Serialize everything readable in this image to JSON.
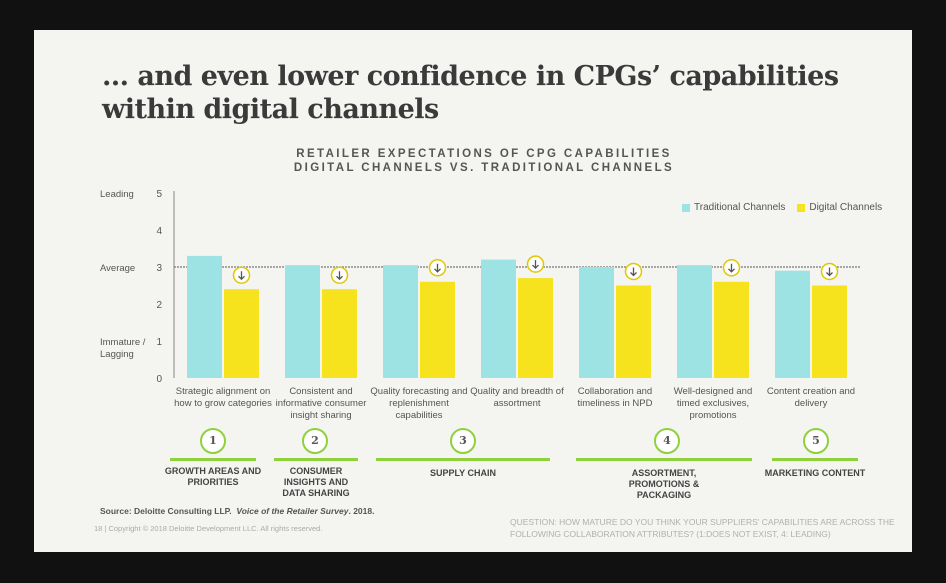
{
  "title": "… and even lower confidence in CPGs’ capabilities within digital channels",
  "subtitle_line1": "RETAILER EXPECTATIONS OF CPG CAPABILITIES",
  "subtitle_line2": "DIGITAL CHANNELS VS. TRADITIONAL CHANNELS",
  "colors": {
    "traditional": "#9ee3e3",
    "digital": "#f7e21e",
    "accent": "#8fd13a"
  },
  "chart_data": {
    "type": "bar",
    "categories": [
      "Strategic alignment on how to grow categories",
      "Consistent and informative consumer insight sharing",
      "Quality forecasting and replenishment capabilities",
      "Quality and breadth of assortment",
      "Collaboration and timeliness in NPD",
      "Well-designed and timed exclusives, promotions",
      "Content creation and delivery"
    ],
    "series": [
      {
        "name": "Traditional Channels",
        "values": [
          3.3,
          3.05,
          3.05,
          3.2,
          3.0,
          3.05,
          2.9
        ]
      },
      {
        "name": "Digital Channels",
        "values": [
          2.4,
          2.4,
          2.6,
          2.7,
          2.5,
          2.6,
          2.5
        ]
      }
    ],
    "ylim": [
      0,
      5
    ],
    "yticks": [
      0,
      1,
      2,
      3,
      4,
      5
    ],
    "y_annotations": [
      "Leading",
      "Average",
      "Immature / Lagging"
    ],
    "reference_line": 3,
    "legend_position": "top-right",
    "grid": false
  },
  "groups": [
    {
      "number": "1",
      "label": "GROWTH AREAS AND PRIORITIES"
    },
    {
      "number": "2",
      "label": "CONSUMER INSIGHTS AND DATA SHARING"
    },
    {
      "number": "3",
      "label": "SUPPLY CHAIN"
    },
    {
      "number": "4",
      "label": "ASSORTMENT, PROMOTIONS & PACKAGING"
    },
    {
      "number": "5",
      "label": "MARKETING CONTENT"
    }
  ],
  "source_prefix": "Source: Deloitte Consulting LLP.",
  "source_title": "Voice of the Retailer Survey",
  "source_suffix": ". 2018.",
  "copyright": "18  |  Copyright © 2018 Deloitte Development LLC. All rights reserved.",
  "question": "QUESTION: HOW MATURE DO YOU THINK YOUR SUPPLIERS' CAPABILITIES ARE ACROSS THE FOLLOWING COLLABORATION ATTRIBUTES? (1:DOES NOT EXIST, 4: LEADING)"
}
